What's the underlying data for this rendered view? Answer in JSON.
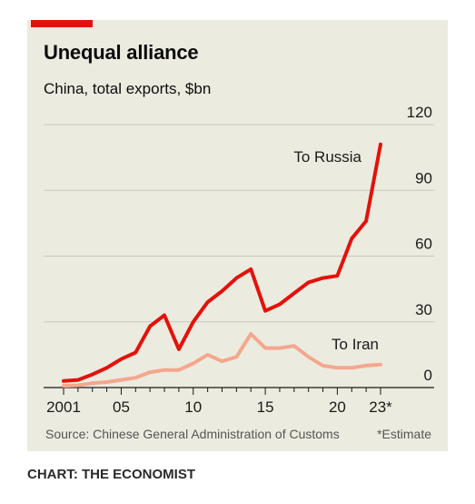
{
  "title": "Unequal alliance",
  "subtitle": "China, total exports, $bn",
  "source": "Source: Chinese General Administration of Customs",
  "footnote": "*Estimate",
  "credit": "CHART: THE ECONOMIST",
  "colors": {
    "russia": "#E3120B",
    "iran": "#F4A78E",
    "accent": "#E3120B",
    "background": "#ECEBDF",
    "grid": "#C9C8BD"
  },
  "chart_data": {
    "type": "line",
    "x": [
      2001,
      2002,
      2003,
      2004,
      2005,
      2006,
      2007,
      2008,
      2009,
      2010,
      2011,
      2012,
      2013,
      2014,
      2015,
      2016,
      2017,
      2018,
      2019,
      2020,
      2021,
      2022,
      2023
    ],
    "series": [
      {
        "name": "To Russia",
        "values": [
          3,
          3.5,
          6,
          9,
          13,
          16,
          28,
          33,
          17.5,
          30,
          39,
          44,
          50,
          54,
          35,
          38,
          43,
          48,
          50,
          51,
          68,
          76,
          111
        ]
      },
      {
        "name": "To Iran",
        "values": [
          0.8,
          1,
          2,
          2.5,
          3.5,
          4.5,
          7,
          8,
          8,
          11,
          15,
          12,
          14,
          24.5,
          18,
          18,
          19,
          14,
          10,
          9,
          9,
          10,
          10.5
        ]
      }
    ],
    "ylim": [
      0,
      120
    ],
    "yticks": [
      0,
      30,
      60,
      90,
      120
    ],
    "xlim": [
      2001,
      2023
    ],
    "xticks": [
      2001,
      2005,
      2010,
      2015,
      2020,
      2023
    ],
    "xtick_labels": [
      "2001",
      "05",
      "10",
      "15",
      "20",
      "23*"
    ],
    "grid": true,
    "y_axis_side": "right"
  }
}
